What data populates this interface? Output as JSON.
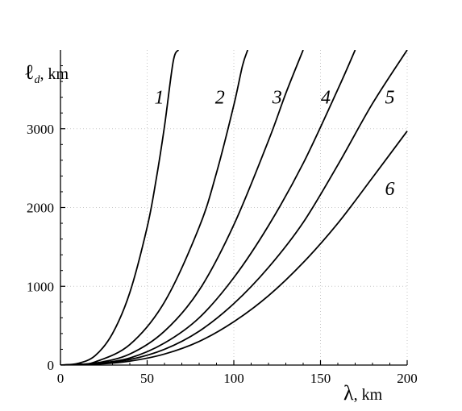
{
  "chart_data": {
    "type": "line",
    "title": "",
    "xlabel": {
      "symbol": "λ",
      "unit": ", km"
    },
    "ylabel": {
      "symbol": "ℓ",
      "subscript": "d",
      "unit": ", km"
    },
    "xlim": [
      0,
      200
    ],
    "ylim": [
      0,
      4000
    ],
    "x_ticks": [
      0,
      50,
      100,
      150,
      200
    ],
    "y_ticks": [
      0,
      1000,
      2000,
      3000
    ],
    "grid": true,
    "legend": "none (curves labeled inline)",
    "series": [
      {
        "name": "1",
        "x": [
          0,
          10,
          20,
          30,
          40,
          50,
          55,
          60,
          65,
          68
        ],
        "y": [
          0,
          20,
          120,
          400,
          920,
          1750,
          2330,
          3030,
          3850,
          4000
        ]
      },
      {
        "name": "2",
        "x": [
          0,
          10,
          20,
          40,
          60,
          80,
          90,
          100,
          105,
          108
        ],
        "y": [
          0,
          10,
          40,
          260,
          800,
          1750,
          2440,
          3300,
          3800,
          4000
        ]
      },
      {
        "name": "3",
        "x": [
          0,
          20,
          40,
          60,
          80,
          100,
          120,
          130,
          140
        ],
        "y": [
          0,
          25,
          140,
          430,
          950,
          1780,
          2850,
          3450,
          4000
        ]
      },
      {
        "name": "4",
        "x": [
          0,
          20,
          40,
          60,
          80,
          100,
          120,
          140,
          160,
          170
        ],
        "y": [
          0,
          20,
          90,
          280,
          600,
          1110,
          1770,
          2560,
          3500,
          4000
        ]
      },
      {
        "name": "5",
        "x": [
          0,
          20,
          40,
          60,
          80,
          100,
          120,
          140,
          160,
          180,
          200
        ],
        "y": [
          0,
          15,
          70,
          200,
          430,
          780,
          1240,
          1810,
          2540,
          3320,
          4000
        ]
      },
      {
        "name": "6",
        "x": [
          0,
          20,
          40,
          60,
          80,
          100,
          120,
          140,
          160,
          180,
          200
        ],
        "y": [
          0,
          10,
          50,
          140,
          300,
          550,
          880,
          1300,
          1800,
          2380,
          2970
        ]
      }
    ]
  }
}
